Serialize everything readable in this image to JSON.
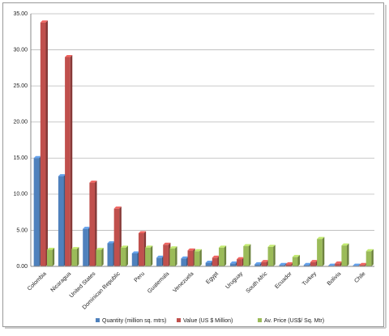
{
  "chart_data": {
    "type": "bar",
    "categories": [
      "Colombia",
      "Nicaragua",
      "United States",
      "Dominican Republic",
      "Peru",
      "Guatemala",
      "Venezuela",
      "Egypt",
      "Uruguay",
      "South Afric",
      "Ecuador",
      "Turkey",
      "Bolivia",
      "Chile"
    ],
    "series": [
      {
        "name": "Quantity (million sq. mtrs)",
        "color": "#4f81bd",
        "values": [
          15.0,
          12.5,
          5.2,
          3.2,
          1.8,
          1.2,
          1.1,
          0.5,
          0.4,
          0.3,
          0.2,
          0.2,
          0.1,
          0.1
        ]
      },
      {
        "name": "Value (US $ Million)",
        "color": "#c0504d",
        "values": [
          33.8,
          29.0,
          11.6,
          8.0,
          4.6,
          3.0,
          2.2,
          1.2,
          1.0,
          0.6,
          0.3,
          0.6,
          0.4,
          0.2
        ]
      },
      {
        "name": "Av. Price (US$/ Sq. Mtr)",
        "color": "#9bbb59",
        "values": [
          2.3,
          2.4,
          2.3,
          2.6,
          2.6,
          2.5,
          2.1,
          2.6,
          2.8,
          2.7,
          1.3,
          3.8,
          2.9,
          2.1
        ]
      }
    ],
    "ylim": [
      0,
      35
    ],
    "yticks": [
      {
        "value": 0,
        "label": "0.00"
      },
      {
        "value": 5,
        "label": "5.00"
      },
      {
        "value": 10,
        "label": "10.00"
      },
      {
        "value": 15,
        "label": "15.00"
      },
      {
        "value": 20,
        "label": "20.00"
      },
      {
        "value": 25,
        "label": "25.00"
      },
      {
        "value": 30,
        "label": "30.00"
      },
      {
        "value": 35,
        "label": "35.00"
      }
    ],
    "grid": true,
    "legend": "bottom"
  }
}
